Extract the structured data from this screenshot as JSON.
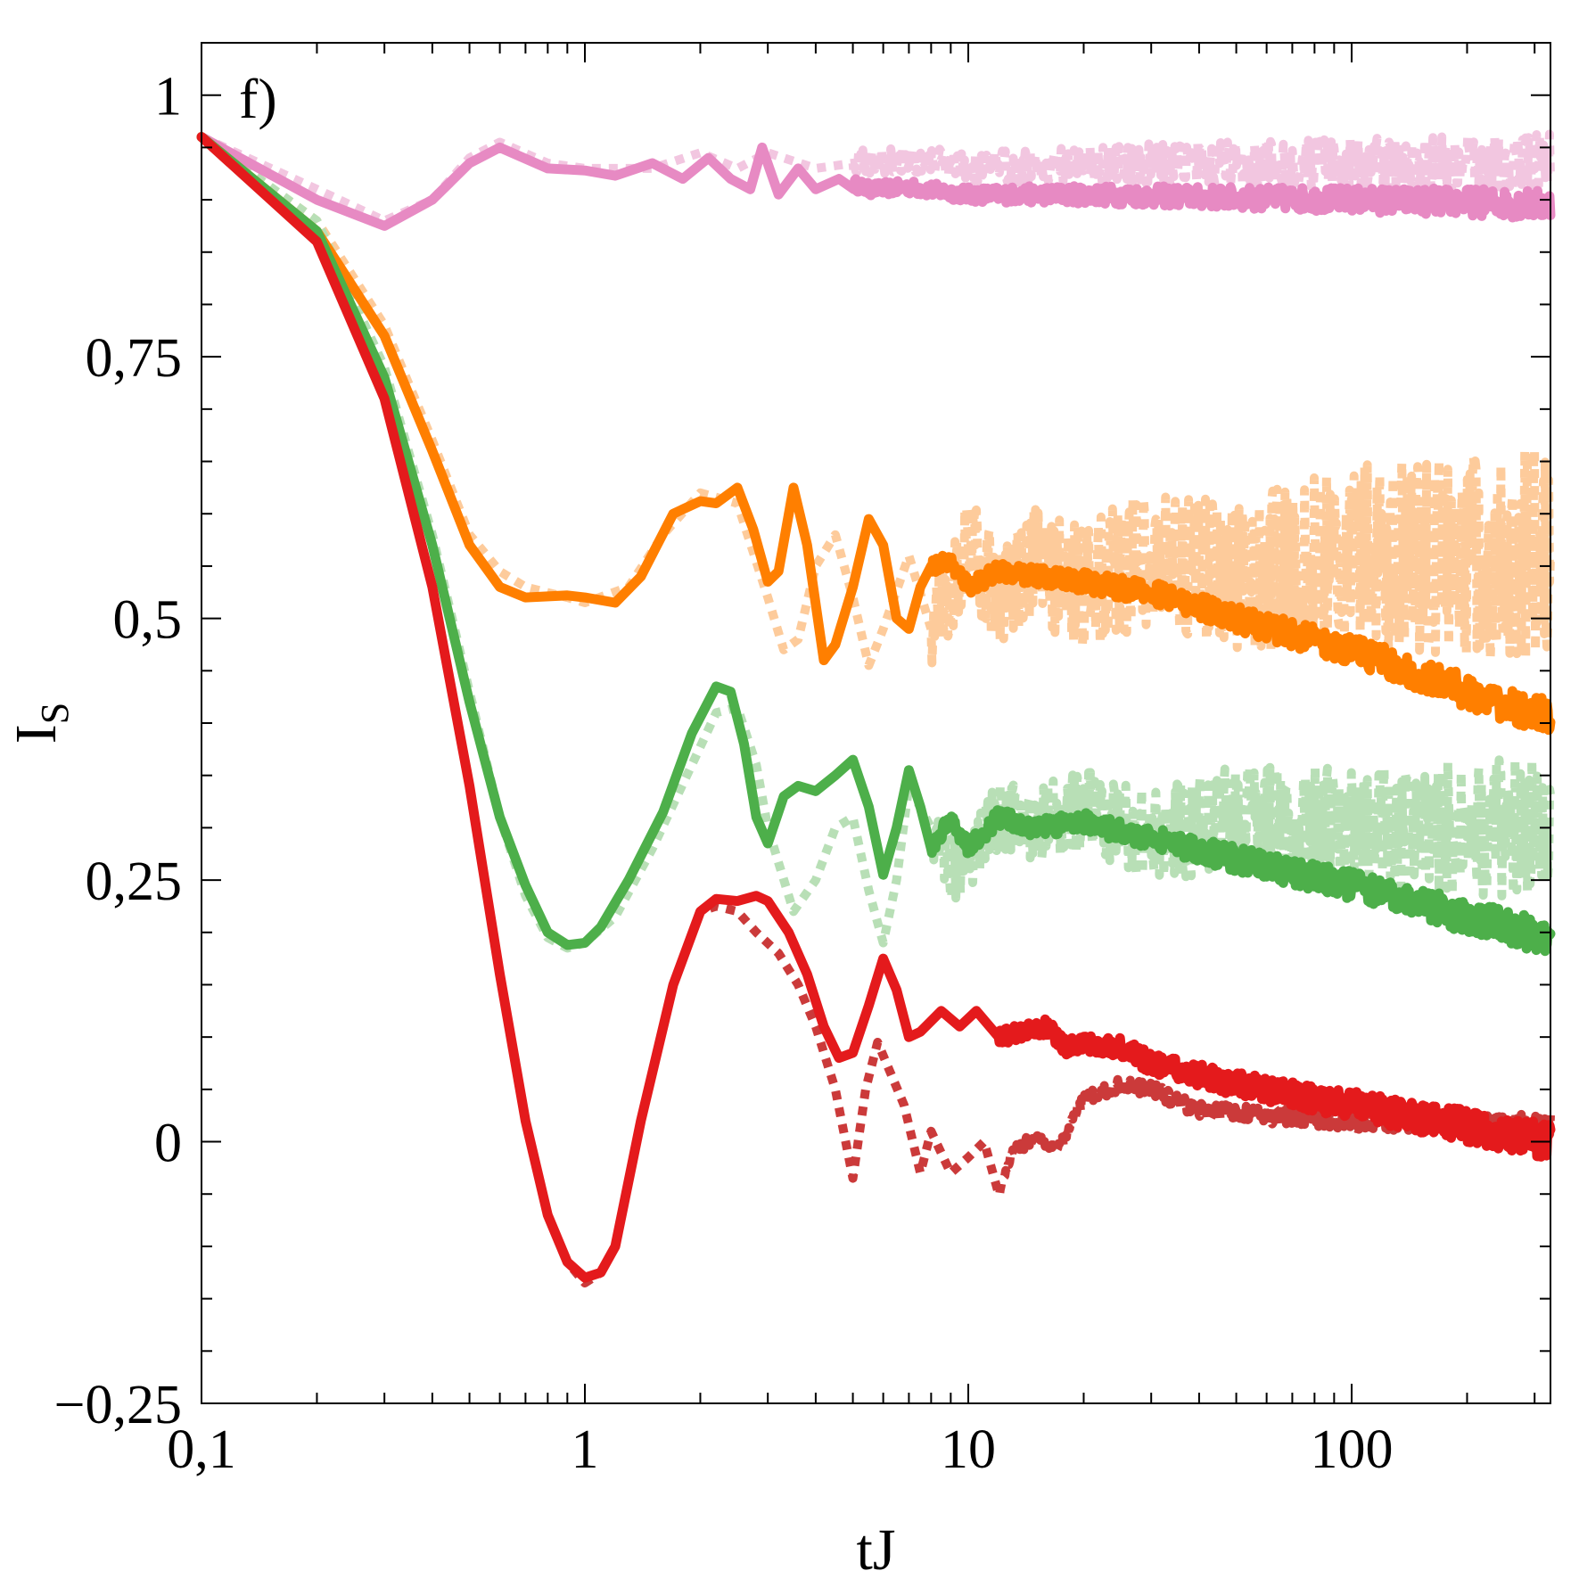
{
  "chart_data": {
    "type": "line",
    "panel_label": "f)",
    "xlabel": "tJ",
    "ylabel_main": "I",
    "ylabel_sub": "S",
    "xscale": "log",
    "xlim": [
      0.1,
      330
    ],
    "ylim": [
      -0.25,
      1.05
    ],
    "x_ticks": [
      0.1,
      1,
      10,
      100
    ],
    "x_tick_labels": [
      "0,1",
      "1",
      "10",
      "100"
    ],
    "y_ticks": [
      -0.25,
      0,
      0.25,
      0.5,
      0.75,
      1
    ],
    "y_tick_labels": [
      "−0,25",
      "0",
      "0,25",
      "0,5",
      "0,75",
      "1"
    ],
    "series": [
      {
        "style": "solid",
        "color": "#e78ac3",
        "points": [
          [
            0.1,
            0.96
          ],
          [
            0.2,
            0.9
          ],
          [
            0.3,
            0.875
          ],
          [
            0.4,
            0.9
          ],
          [
            0.5,
            0.935
          ],
          [
            0.6,
            0.95
          ],
          [
            0.8,
            0.93
          ],
          [
            1.0,
            0.928
          ],
          [
            1.2,
            0.923
          ],
          [
            1.5,
            0.935
          ],
          [
            1.8,
            0.92
          ],
          [
            2.1,
            0.94
          ],
          [
            2.4,
            0.92
          ],
          [
            2.7,
            0.91
          ],
          [
            2.9,
            0.95
          ],
          [
            3.2,
            0.905
          ],
          [
            3.6,
            0.93
          ],
          [
            4.0,
            0.91
          ],
          [
            4.6,
            0.92
          ],
          [
            5.5,
            0.91
          ],
          [
            7,
            0.912
          ],
          [
            10,
            0.905
          ],
          [
            20,
            0.905
          ],
          [
            50,
            0.902
          ],
          [
            100,
            0.9
          ],
          [
            200,
            0.898
          ],
          [
            330,
            0.895
          ]
        ],
        "noise": {
          "from": 5,
          "amp": 0.01
        }
      },
      {
        "style": "dotted",
        "color": "#f2c6e0",
        "points": [
          [
            0.1,
            0.96
          ],
          [
            0.2,
            0.91
          ],
          [
            0.3,
            0.88
          ],
          [
            0.4,
            0.9
          ],
          [
            0.5,
            0.94
          ],
          [
            0.6,
            0.955
          ],
          [
            0.8,
            0.935
          ],
          [
            1.0,
            0.93
          ],
          [
            1.5,
            0.93
          ],
          [
            2.0,
            0.945
          ],
          [
            2.5,
            0.93
          ],
          [
            3,
            0.945
          ],
          [
            4,
            0.93
          ],
          [
            5,
            0.935
          ],
          [
            7,
            0.94
          ],
          [
            10,
            0.93
          ],
          [
            20,
            0.935
          ],
          [
            50,
            0.935
          ],
          [
            100,
            0.935
          ],
          [
            200,
            0.935
          ],
          [
            330,
            0.935
          ]
        ],
        "noise": {
          "from": 5,
          "amp": 0.02
        }
      },
      {
        "style": "solid",
        "color": "#ff7f00",
        "points": [
          [
            0.1,
            0.96
          ],
          [
            0.2,
            0.87
          ],
          [
            0.3,
            0.77
          ],
          [
            0.4,
            0.66
          ],
          [
            0.5,
            0.57
          ],
          [
            0.6,
            0.53
          ],
          [
            0.7,
            0.52
          ],
          [
            0.9,
            0.522
          ],
          [
            1.0,
            0.52
          ],
          [
            1.2,
            0.515
          ],
          [
            1.4,
            0.54
          ],
          [
            1.7,
            0.6
          ],
          [
            2.0,
            0.612
          ],
          [
            2.2,
            0.61
          ],
          [
            2.5,
            0.625
          ],
          [
            2.75,
            0.585
          ],
          [
            3.0,
            0.535
          ],
          [
            3.2,
            0.545
          ],
          [
            3.5,
            0.625
          ],
          [
            3.8,
            0.57
          ],
          [
            4.2,
            0.46
          ],
          [
            4.5,
            0.475
          ],
          [
            5.0,
            0.53
          ],
          [
            5.5,
            0.595
          ],
          [
            6.0,
            0.57
          ],
          [
            6.5,
            0.5
          ],
          [
            7.0,
            0.49
          ],
          [
            7.5,
            0.53
          ],
          [
            8.0,
            0.55
          ],
          [
            9,
            0.555
          ],
          [
            10,
            0.53
          ],
          [
            12,
            0.545
          ],
          [
            15,
            0.54
          ],
          [
            20,
            0.535
          ],
          [
            30,
            0.525
          ],
          [
            50,
            0.5
          ],
          [
            100,
            0.47
          ],
          [
            200,
            0.43
          ],
          [
            330,
            0.405
          ]
        ],
        "noise": {
          "from": 8,
          "amp": 0.012
        }
      },
      {
        "style": "dotted",
        "color": "#fdcb9b",
        "points": [
          [
            0.1,
            0.96
          ],
          [
            0.2,
            0.88
          ],
          [
            0.3,
            0.78
          ],
          [
            0.4,
            0.67
          ],
          [
            0.5,
            0.58
          ],
          [
            0.6,
            0.545
          ],
          [
            0.7,
            0.53
          ],
          [
            0.9,
            0.52
          ],
          [
            1.0,
            0.515
          ],
          [
            1.3,
            0.53
          ],
          [
            1.6,
            0.58
          ],
          [
            2.0,
            0.62
          ],
          [
            2.5,
            0.61
          ],
          [
            3.0,
            0.52
          ],
          [
            3.3,
            0.47
          ],
          [
            3.6,
            0.48
          ],
          [
            4.0,
            0.55
          ],
          [
            4.5,
            0.58
          ],
          [
            5,
            0.52
          ],
          [
            5.5,
            0.455
          ],
          [
            6.0,
            0.49
          ],
          [
            7.0,
            0.56
          ],
          [
            8,
            0.49
          ],
          [
            9,
            0.53
          ],
          [
            10,
            0.57
          ],
          [
            12,
            0.52
          ],
          [
            15,
            0.55
          ],
          [
            20,
            0.53
          ],
          [
            30,
            0.56
          ],
          [
            50,
            0.54
          ],
          [
            100,
            0.56
          ],
          [
            200,
            0.56
          ],
          [
            330,
            0.56
          ]
        ],
        "noise": {
          "from": 8,
          "amp": 0.075
        }
      },
      {
        "style": "solid",
        "color": "#4daf4a",
        "points": [
          [
            0.1,
            0.96
          ],
          [
            0.2,
            0.87
          ],
          [
            0.3,
            0.73
          ],
          [
            0.4,
            0.57
          ],
          [
            0.5,
            0.42
          ],
          [
            0.6,
            0.31
          ],
          [
            0.7,
            0.245
          ],
          [
            0.8,
            0.2
          ],
          [
            0.9,
            0.188
          ],
          [
            1.0,
            0.19
          ],
          [
            1.1,
            0.205
          ],
          [
            1.3,
            0.25
          ],
          [
            1.6,
            0.315
          ],
          [
            1.9,
            0.39
          ],
          [
            2.2,
            0.435
          ],
          [
            2.4,
            0.43
          ],
          [
            2.6,
            0.38
          ],
          [
            2.8,
            0.31
          ],
          [
            3.0,
            0.285
          ],
          [
            3.3,
            0.33
          ],
          [
            3.6,
            0.34
          ],
          [
            4.0,
            0.335
          ],
          [
            4.5,
            0.35
          ],
          [
            5.0,
            0.365
          ],
          [
            5.5,
            0.32
          ],
          [
            6.0,
            0.255
          ],
          [
            6.5,
            0.3
          ],
          [
            7.0,
            0.355
          ],
          [
            7.5,
            0.32
          ],
          [
            8,
            0.28
          ],
          [
            9,
            0.31
          ],
          [
            10,
            0.28
          ],
          [
            12,
            0.31
          ],
          [
            15,
            0.3
          ],
          [
            20,
            0.305
          ],
          [
            30,
            0.29
          ],
          [
            50,
            0.27
          ],
          [
            100,
            0.245
          ],
          [
            200,
            0.215
          ],
          [
            330,
            0.195
          ]
        ],
        "noise": {
          "from": 8,
          "amp": 0.012
        }
      },
      {
        "style": "dotted",
        "color": "#b8dfb6",
        "points": [
          [
            0.1,
            0.96
          ],
          [
            0.2,
            0.88
          ],
          [
            0.3,
            0.74
          ],
          [
            0.4,
            0.58
          ],
          [
            0.5,
            0.43
          ],
          [
            0.6,
            0.31
          ],
          [
            0.7,
            0.235
          ],
          [
            0.8,
            0.195
          ],
          [
            0.9,
            0.185
          ],
          [
            1.0,
            0.19
          ],
          [
            1.2,
            0.215
          ],
          [
            1.5,
            0.28
          ],
          [
            1.9,
            0.36
          ],
          [
            2.2,
            0.41
          ],
          [
            2.5,
            0.415
          ],
          [
            2.8,
            0.36
          ],
          [
            3.0,
            0.3
          ],
          [
            3.5,
            0.22
          ],
          [
            4.0,
            0.25
          ],
          [
            4.5,
            0.3
          ],
          [
            5.0,
            0.31
          ],
          [
            5.5,
            0.24
          ],
          [
            6.0,
            0.19
          ],
          [
            6.5,
            0.25
          ],
          [
            7,
            0.34
          ],
          [
            8,
            0.3
          ],
          [
            9,
            0.26
          ],
          [
            10,
            0.27
          ],
          [
            12,
            0.31
          ],
          [
            15,
            0.3
          ],
          [
            20,
            0.32
          ],
          [
            30,
            0.29
          ],
          [
            50,
            0.31
          ],
          [
            100,
            0.3
          ],
          [
            200,
            0.3
          ],
          [
            330,
            0.3
          ]
        ],
        "noise": {
          "from": 8,
          "amp": 0.05
        }
      },
      {
        "style": "solid",
        "color": "#e41a1c",
        "points": [
          [
            0.1,
            0.96
          ],
          [
            0.2,
            0.86
          ],
          [
            0.3,
            0.71
          ],
          [
            0.4,
            0.53
          ],
          [
            0.5,
            0.34
          ],
          [
            0.6,
            0.16
          ],
          [
            0.7,
            0.02
          ],
          [
            0.8,
            -0.07
          ],
          [
            0.9,
            -0.115
          ],
          [
            1.0,
            -0.13
          ],
          [
            1.1,
            -0.125
          ],
          [
            1.2,
            -0.1
          ],
          [
            1.4,
            0.02
          ],
          [
            1.7,
            0.15
          ],
          [
            2.0,
            0.22
          ],
          [
            2.2,
            0.232
          ],
          [
            2.5,
            0.23
          ],
          [
            2.8,
            0.235
          ],
          [
            3.0,
            0.23
          ],
          [
            3.4,
            0.2
          ],
          [
            3.8,
            0.16
          ],
          [
            4.2,
            0.11
          ],
          [
            4.6,
            0.08
          ],
          [
            5.0,
            0.085
          ],
          [
            5.5,
            0.13
          ],
          [
            6.0,
            0.175
          ],
          [
            6.5,
            0.145
          ],
          [
            7.0,
            0.1
          ],
          [
            7.5,
            0.105
          ],
          [
            8.5,
            0.125
          ],
          [
            9.5,
            0.11
          ],
          [
            10.5,
            0.125
          ],
          [
            12,
            0.1
          ],
          [
            14,
            0.105
          ],
          [
            16,
            0.11
          ],
          [
            18,
            0.09
          ],
          [
            20,
            0.095
          ],
          [
            25,
            0.09
          ],
          [
            30,
            0.075
          ],
          [
            50,
            0.055
          ],
          [
            100,
            0.035
          ],
          [
            200,
            0.015
          ],
          [
            330,
            0.0
          ]
        ],
        "noise": {
          "from": 12,
          "amp": 0.012
        }
      },
      {
        "style": "dotted",
        "color": "#cb3a3a",
        "points": [
          [
            0.1,
            0.96
          ],
          [
            0.2,
            0.86
          ],
          [
            0.3,
            0.71
          ],
          [
            0.4,
            0.53
          ],
          [
            0.5,
            0.34
          ],
          [
            0.6,
            0.16
          ],
          [
            0.7,
            0.02
          ],
          [
            0.8,
            -0.07
          ],
          [
            0.9,
            -0.115
          ],
          [
            1.0,
            -0.135
          ],
          [
            1.1,
            -0.125
          ],
          [
            1.2,
            -0.1
          ],
          [
            1.4,
            0.02
          ],
          [
            1.7,
            0.15
          ],
          [
            2.0,
            0.22
          ],
          [
            2.2,
            0.225
          ],
          [
            2.5,
            0.22
          ],
          [
            2.8,
            0.2
          ],
          [
            3.2,
            0.18
          ],
          [
            3.6,
            0.15
          ],
          [
            4.0,
            0.11
          ],
          [
            4.5,
            0.05
          ],
          [
            5.0,
            -0.035
          ],
          [
            5.4,
            0.05
          ],
          [
            5.8,
            0.095
          ],
          [
            6.2,
            0.07
          ],
          [
            6.8,
            0.035
          ],
          [
            7.5,
            -0.03
          ],
          [
            8,
            0.01
          ],
          [
            9,
            -0.03
          ],
          [
            10,
            -0.015
          ],
          [
            11,
            0.0
          ],
          [
            12,
            -0.05
          ],
          [
            13,
            -0.01
          ],
          [
            15,
            0.005
          ],
          [
            17,
            -0.01
          ],
          [
            20,
            0.04
          ],
          [
            25,
            0.055
          ],
          [
            30,
            0.05
          ],
          [
            40,
            0.03
          ],
          [
            60,
            0.025
          ],
          [
            100,
            0.02
          ],
          [
            200,
            0.018
          ],
          [
            330,
            0.015
          ]
        ],
        "noise": {
          "from": 12,
          "amp": 0.008
        }
      }
    ]
  }
}
